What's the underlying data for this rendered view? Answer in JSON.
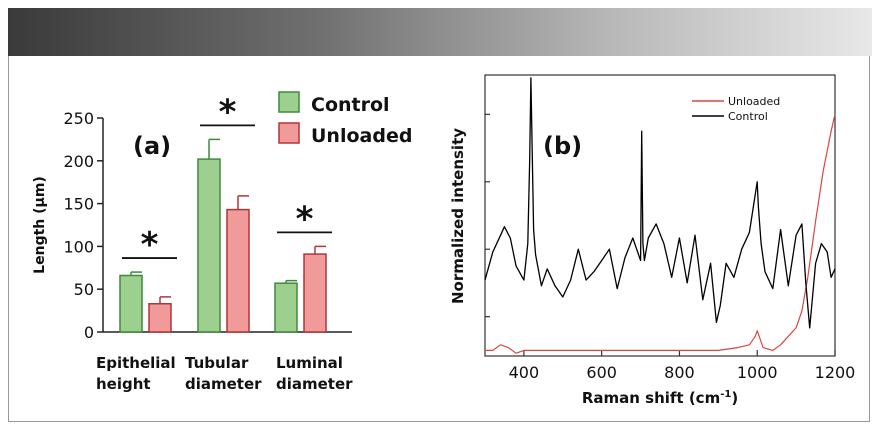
{
  "chart_data": [
    {
      "type": "bar",
      "panel_label": "(a)",
      "ylabel": "Length (µm)",
      "ylim": [
        0,
        250
      ],
      "yticks": [
        "0",
        "50",
        "100",
        "150",
        "200",
        "250"
      ],
      "categories": [
        "Epithelial height",
        "Tubular diameter",
        "Luminal diameter"
      ],
      "category_lines": [
        [
          "Epithelial",
          "height"
        ],
        [
          "Tubular",
          "diameter"
        ],
        [
          "Luminal",
          "diameter"
        ]
      ],
      "series": [
        {
          "name": "Control",
          "color": "#9dd08f",
          "edge": "#3f8a3c",
          "values": [
            66,
            202,
            57
          ],
          "errors": [
            4,
            23,
            3
          ]
        },
        {
          "name": "Unloaded",
          "color": "#f19a9a",
          "edge": "#b0353a",
          "values": [
            33,
            143,
            91
          ],
          "errors": [
            8,
            16,
            9
          ]
        }
      ],
      "significance": [
        "*",
        "*",
        "*"
      ],
      "legend_position": "top-right"
    },
    {
      "type": "line",
      "panel_label": "(b)",
      "xlabel": "Raman shift (cm-1)",
      "xlabel_main": "Raman shift (cm",
      "xlabel_sup": "-1",
      "xlabel_close": ")",
      "ylabel": "Normalized intensity",
      "xlim": [
        300,
        1200
      ],
      "xticks": [
        "400",
        "600",
        "800",
        "1000",
        "1200"
      ],
      "ylim": [
        0,
        1
      ],
      "legend": [
        "Unloaded",
        "Control"
      ],
      "legend_position": "top-right",
      "series": [
        {
          "name": "Control",
          "color": "#000000",
          "x": [
            300,
            320,
            340,
            350,
            365,
            380,
            400,
            410,
            415,
            418,
            421,
            425,
            430,
            445,
            460,
            480,
            500,
            520,
            540,
            560,
            580,
            600,
            620,
            640,
            660,
            680,
            700,
            703,
            706,
            710,
            720,
            740,
            760,
            780,
            800,
            820,
            840,
            860,
            880,
            895,
            905,
            920,
            940,
            960,
            980,
            1000,
            1003,
            1010,
            1020,
            1040,
            1060,
            1080,
            1100,
            1115,
            1125,
            1135,
            1150,
            1165,
            1180,
            1190,
            1200
          ],
          "y": [
            0.27,
            0.37,
            0.43,
            0.46,
            0.42,
            0.32,
            0.27,
            0.4,
            0.7,
            0.99,
            0.75,
            0.45,
            0.36,
            0.25,
            0.31,
            0.25,
            0.21,
            0.27,
            0.38,
            0.27,
            0.3,
            0.34,
            0.38,
            0.24,
            0.35,
            0.42,
            0.34,
            0.8,
            0.4,
            0.34,
            0.42,
            0.47,
            0.4,
            0.28,
            0.42,
            0.26,
            0.43,
            0.2,
            0.33,
            0.12,
            0.18,
            0.33,
            0.28,
            0.38,
            0.44,
            0.62,
            0.53,
            0.4,
            0.3,
            0.24,
            0.45,
            0.25,
            0.43,
            0.47,
            0.26,
            0.1,
            0.33,
            0.4,
            0.37,
            0.28,
            0.31
          ]
        },
        {
          "name": "Unloaded",
          "color": "#d9473f",
          "x": [
            300,
            320,
            340,
            360,
            380,
            400,
            450,
            500,
            550,
            600,
            650,
            700,
            750,
            800,
            850,
            900,
            950,
            980,
            995,
            1000,
            1005,
            1015,
            1040,
            1060,
            1080,
            1100,
            1115,
            1130,
            1150,
            1170,
            1190,
            1200
          ],
          "y": [
            0.02,
            0.02,
            0.04,
            0.03,
            0.01,
            0.02,
            0.02,
            0.02,
            0.02,
            0.02,
            0.02,
            0.02,
            0.02,
            0.02,
            0.02,
            0.02,
            0.03,
            0.04,
            0.07,
            0.09,
            0.07,
            0.03,
            0.02,
            0.04,
            0.07,
            0.1,
            0.16,
            0.28,
            0.48,
            0.66,
            0.8,
            0.86
          ]
        }
      ]
    }
  ]
}
